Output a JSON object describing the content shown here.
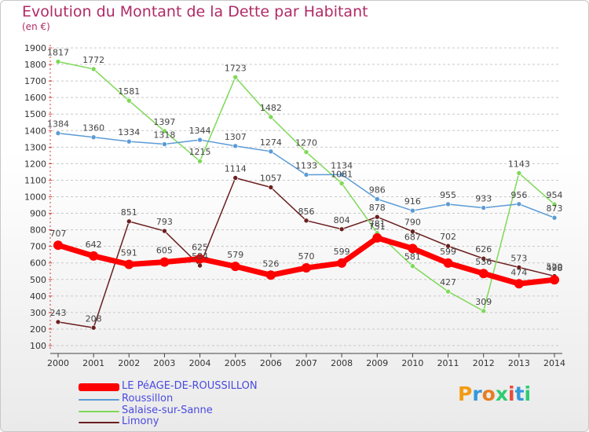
{
  "title": "Evolution du Montant de la Dette par Habitant",
  "subtitle": "(en €)",
  "logo": {
    "text": "Proxiti",
    "colors": [
      "#f39c12",
      "#3498db",
      "#e67e22",
      "#2ecc71",
      "#e74c3c",
      "#3498db",
      "#2ecc71"
    ]
  },
  "chart_data": {
    "type": "line",
    "x": [
      "2000",
      "2001",
      "2002",
      "2003",
      "2004",
      "2005",
      "2006",
      "2007",
      "2008",
      "2009",
      "2010",
      "2011",
      "2012",
      "2013",
      "2014"
    ],
    "ylim": [
      100,
      1900
    ],
    "yticks": [
      100,
      200,
      300,
      400,
      500,
      600,
      700,
      800,
      900,
      1000,
      1100,
      1200,
      1300,
      1400,
      1500,
      1600,
      1700,
      1800,
      1900
    ],
    "grid": "horizontal dashed",
    "legend_position": "bottom-left",
    "series": [
      {
        "name": "Limony",
        "color": "#6b1f1f",
        "values": [
          243,
          208,
          851,
          793,
          584,
          1114,
          1057,
          856,
          804,
          878,
          790,
          702,
          626,
          573,
          520
        ],
        "labels": [
          "243",
          "208",
          "851",
          "793",
          "584",
          "1114",
          "1057",
          "856",
          "804",
          "878",
          "790",
          "702",
          "626",
          "573",
          "520"
        ]
      },
      {
        "name": "Salaise-sur-Sanne",
        "color": "#7ed957",
        "values": [
          1817,
          1772,
          1581,
          1397,
          1215,
          1723,
          1482,
          1270,
          1081,
          781,
          581,
          427,
          309,
          1143,
          954
        ],
        "labels": [
          "1817",
          "1772",
          "1581",
          "1397",
          "1215",
          "1723",
          "1482",
          "1270",
          "1081",
          "781",
          "581",
          "427",
          "309",
          "1143",
          "954"
        ]
      },
      {
        "name": "Roussillon",
        "color": "#5b9bd5",
        "values": [
          1384,
          1360,
          1334,
          1318,
          1344,
          1307,
          1274,
          1133,
          1134,
          986,
          916,
          955,
          933,
          956,
          873
        ],
        "labels": [
          "1384",
          "1360",
          "1334",
          "1318",
          "1344",
          "1307",
          "1274",
          "1133",
          "1134",
          "986",
          "916",
          "955",
          "933",
          "956",
          "873"
        ]
      },
      {
        "name": "LE PéAGE-DE-ROUSSILLON",
        "color": "#ff0000",
        "values": [
          707,
          642,
          591,
          605,
          625,
          579,
          526,
          570,
          599,
          751,
          687,
          599,
          536,
          474,
          498
        ],
        "labels": [
          "707",
          "642",
          "591",
          "605",
          "625",
          "579",
          "526",
          "570",
          "599",
          "751",
          "687",
          "599",
          "536",
          "474",
          "498"
        ]
      }
    ],
    "legend_order": [
      "LE PéAGE-DE-ROUSSILLON",
      "Roussillon",
      "Salaise-sur-Sanne",
      "Limony"
    ]
  }
}
